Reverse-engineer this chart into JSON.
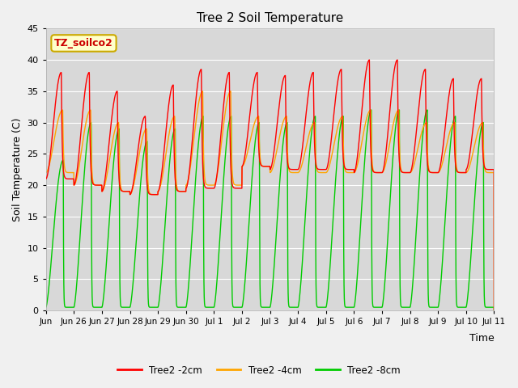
{
  "title": "Tree 2 Soil Temperature",
  "ylabel": "Soil Temperature (C)",
  "xlabel": "Time",
  "ylim": [
    0,
    45
  ],
  "fig_bg_color": "#f0f0f0",
  "plot_bg_color": "#d8d8d8",
  "annotation_text": "TZ_soilco2",
  "annotation_color": "#cc0000",
  "annotation_bg": "#ffffcc",
  "annotation_border": "#ccaa00",
  "legend_labels": [
    "Tree2 -2cm",
    "Tree2 -4cm",
    "Tree2 -8cm"
  ],
  "line_colors": [
    "#ff0000",
    "#ffa500",
    "#00cc00"
  ],
  "xtick_labels": [
    "Jun 26",
    "Jun 27",
    "Jun 28",
    "Jun 29",
    "Jun 30",
    "Jul 1",
    "Jul 2",
    "Jul 3",
    "Jul 4",
    "Jul 5",
    "Jul 6",
    "Jul 7",
    "Jul 8",
    "Jul 9",
    "Jul 10",
    "Jul 11"
  ],
  "n_days": 16,
  "grid_color": "#ffffff",
  "yticks": [
    0,
    5,
    10,
    15,
    20,
    25,
    30,
    35,
    40,
    45
  ],
  "red_peaks": [
    38,
    38,
    35,
    31,
    36,
    38.5,
    38,
    38,
    37.5,
    38,
    38.5,
    40,
    40,
    38.5,
    37,
    37
  ],
  "orange_peaks": [
    32,
    32,
    30,
    29,
    31,
    35,
    35,
    31,
    31,
    30,
    31,
    32,
    32,
    30,
    30,
    30
  ],
  "green_peaks": [
    24,
    30,
    29,
    27,
    29,
    31,
    31,
    30,
    30,
    31,
    31,
    32,
    32,
    32,
    31,
    30
  ],
  "red_mins": [
    21,
    20,
    19,
    18.5,
    19,
    19.5,
    19.5,
    23,
    22.5,
    22.5,
    22.5,
    22,
    22,
    22,
    22,
    22.5
  ],
  "orange_mins": [
    22,
    20,
    19,
    18.5,
    19,
    20,
    20,
    23,
    22,
    22,
    22,
    22,
    22,
    22,
    22,
    22
  ],
  "green_mins": [
    0.5,
    0.5,
    0.5,
    0.5,
    0.5,
    0.5,
    0.5,
    0.5,
    0.5,
    0.5,
    0.5,
    0.5,
    0.5,
    0.5,
    0.5,
    0.5
  ]
}
